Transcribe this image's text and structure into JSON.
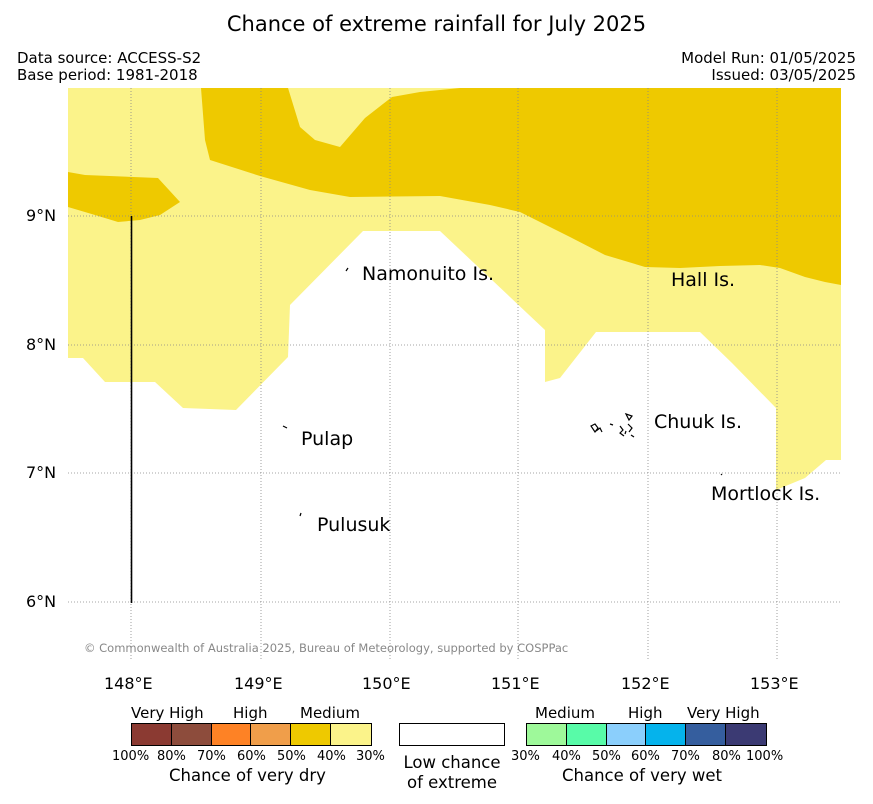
{
  "title": "Chance of extreme rainfall for July 2025",
  "header": {
    "data_source": "Data source: ACCESS-S2",
    "base_period": "Base period: 1981-2018",
    "model_run": "Model Run: 01/05/2025",
    "issued": "Issued: 03/05/2025"
  },
  "map": {
    "lat_labels": [
      "9°N",
      "8°N",
      "7°N",
      "6°N"
    ],
    "lon_labels": [
      "148°E",
      "149°E",
      "150°E",
      "151°E",
      "152°E",
      "153°E"
    ],
    "places": {
      "namonuito": "Namonuito Is.",
      "hall": "Hall Is.",
      "pulap": "Pulap",
      "chuuk": "Chuuk Is.",
      "mortlock": "Mortlock Is.",
      "pulusuk": "Pulusuk"
    },
    "copyright": "© Commonwealth of Australia 2025, Bureau of Meteorology, supported by COSPPac",
    "colors": {
      "dry_medium_30_40": "#fbf38a",
      "dry_medium_40_50": "#eec900",
      "background": "#ffffff"
    }
  },
  "legend": {
    "dry": {
      "categories": [
        "Very High",
        "High",
        "Medium"
      ],
      "ticks": [
        "100%",
        "80%",
        "70%",
        "60%",
        "50%",
        "40%",
        "30%"
      ],
      "colors": [
        "#8b3a32",
        "#8d4c3c",
        "#fe8225",
        "#f09e4a",
        "#eec900",
        "#fbf38a"
      ],
      "title": "Chance of very dry"
    },
    "neutral": {
      "label_line1": "Low chance",
      "label_line2": "of extreme",
      "color": "#ffffff"
    },
    "wet": {
      "categories": [
        "Medium",
        "High",
        "Very High"
      ],
      "ticks": [
        "30%",
        "40%",
        "50%",
        "60%",
        "70%",
        "80%",
        "100%"
      ],
      "colors": [
        "#9ef99a",
        "#58fba8",
        "#8bcffc",
        "#05b3ec",
        "#355e9e",
        "#3b3a73"
      ],
      "title": "Chance of very wet"
    }
  }
}
